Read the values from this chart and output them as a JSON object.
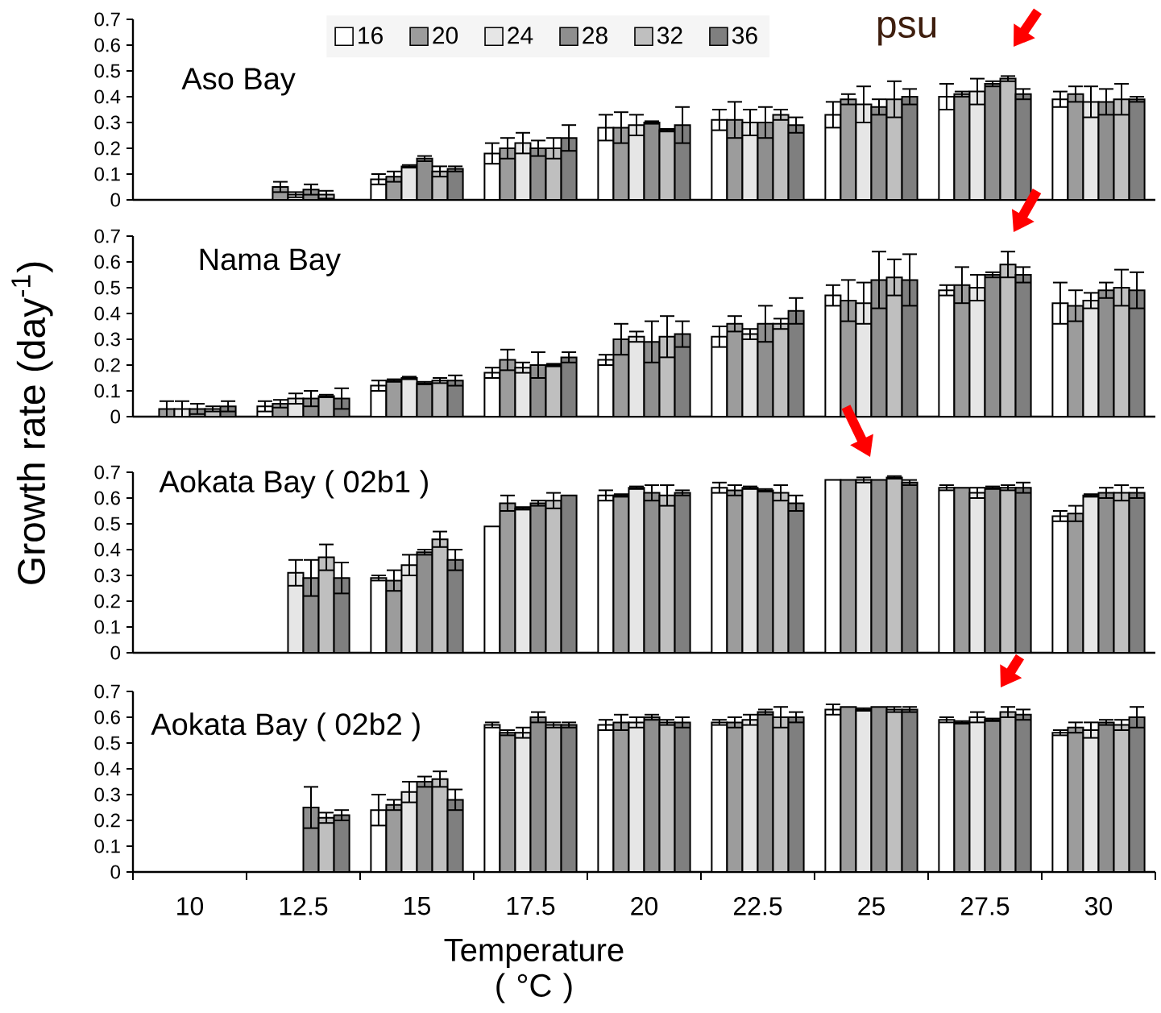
{
  "chart_data": [
    {
      "type": "bar",
      "title": "Aso Bay",
      "legend": "top",
      "legend_title": "psu",
      "tick_labels": "y",
      "categories": [
        "10",
        "12.5",
        "15",
        "17.5",
        "20",
        "22.5",
        "25",
        "27.5",
        "30"
      ],
      "ylim": [
        0,
        0.7
      ],
      "yticks": [
        0,
        0.1,
        0.2,
        0.3,
        0.4,
        0.5,
        0.6,
        0.7
      ],
      "series": [
        {
          "name": "16",
          "color": "#ffffff",
          "values": [
            null,
            null,
            0.08,
            0.18,
            0.28,
            0.31,
            0.33,
            0.4,
            0.39
          ],
          "errors": [
            null,
            null,
            0.02,
            0.04,
            0.05,
            0.04,
            0.05,
            0.05,
            0.03
          ]
        },
        {
          "name": "20",
          "color": "#9c9c9c",
          "values": [
            null,
            0.05,
            0.09,
            0.2,
            0.28,
            0.31,
            0.39,
            0.41,
            0.41
          ],
          "errors": [
            null,
            0.02,
            0.02,
            0.04,
            0.06,
            0.07,
            0.02,
            0.01,
            0.03
          ]
        },
        {
          "name": "24",
          "color": "#e6e6e6",
          "values": [
            null,
            0.02,
            0.13,
            0.22,
            0.29,
            0.3,
            0.37,
            0.42,
            0.38
          ],
          "errors": [
            null,
            0.01,
            0.005,
            0.04,
            0.04,
            0.05,
            0.07,
            0.05,
            0.06
          ]
        },
        {
          "name": "28",
          "color": "#8f8f8f",
          "values": [
            null,
            0.04,
            0.16,
            0.2,
            0.3,
            0.3,
            0.36,
            0.45,
            0.38
          ],
          "errors": [
            null,
            0.02,
            0.01,
            0.03,
            0.005,
            0.06,
            0.03,
            0.01,
            0.05
          ]
        },
        {
          "name": "32",
          "color": "#bfbfbf",
          "values": [
            null,
            0.02,
            0.11,
            0.2,
            0.27,
            0.33,
            0.39,
            0.47,
            0.39
          ],
          "errors": [
            null,
            0.015,
            0.02,
            0.04,
            0.005,
            0.02,
            0.07,
            0.01,
            0.06
          ]
        },
        {
          "name": "36",
          "color": "#7f7f7f",
          "values": [
            null,
            null,
            0.12,
            0.24,
            0.29,
            0.29,
            0.4,
            0.41,
            0.39
          ],
          "errors": [
            null,
            null,
            0.01,
            0.05,
            0.07,
            0.03,
            0.03,
            0.02,
            0.01
          ]
        }
      ]
    },
    {
      "type": "bar",
      "title": "Nama Bay",
      "ylabel": "Growth rate (day$^{-1}$)",
      "tick_labels": "y",
      "categories": [
        "10",
        "12.5",
        "15",
        "17.5",
        "20",
        "22.5",
        "25",
        "27.5",
        "30"
      ],
      "ylim": [
        0,
        0.7
      ],
      "yticks": [
        0,
        0.1,
        0.2,
        0.3,
        0.4,
        0.5,
        0.6,
        0.7
      ],
      "series": [
        {
          "color": "#ffffff",
          "values": [
            null,
            0.04,
            0.12,
            0.17,
            0.22,
            0.31,
            0.47,
            0.49,
            0.44
          ],
          "errors": [
            null,
            0.02,
            0.02,
            0.02,
            0.02,
            0.04,
            0.04,
            0.02,
            0.08
          ]
        },
        {
          "color": "#9c9c9c",
          "values": [
            0.03,
            0.05,
            0.14,
            0.22,
            0.3,
            0.36,
            0.45,
            0.51,
            0.43
          ],
          "errors": [
            0.03,
            0.015,
            0.005,
            0.04,
            0.06,
            0.03,
            0.08,
            0.07,
            0.06
          ]
        },
        {
          "color": "#e6e6e6",
          "values": [
            0.03,
            0.07,
            0.15,
            0.19,
            0.31,
            0.32,
            0.44,
            0.5,
            0.45
          ],
          "errors": [
            0.03,
            0.02,
            0.005,
            0.02,
            0.02,
            0.02,
            0.08,
            0.05,
            0.03
          ]
        },
        {
          "color": "#8f8f8f",
          "values": [
            0.03,
            0.07,
            0.13,
            0.2,
            0.29,
            0.36,
            0.53,
            0.55,
            0.49
          ],
          "errors": [
            0.02,
            0.03,
            0.005,
            0.05,
            0.08,
            0.07,
            0.11,
            0.01,
            0.03
          ]
        },
        {
          "color": "#bfbfbf",
          "values": [
            0.03,
            0.08,
            0.14,
            0.2,
            0.31,
            0.36,
            0.54,
            0.59,
            0.5
          ],
          "errors": [
            0.01,
            0.005,
            0.01,
            0.005,
            0.08,
            0.02,
            0.07,
            0.05,
            0.07
          ]
        },
        {
          "color": "#7f7f7f",
          "values": [
            0.04,
            0.07,
            0.14,
            0.23,
            0.32,
            0.41,
            0.53,
            0.55,
            0.49
          ],
          "errors": [
            0.02,
            0.04,
            0.02,
            0.02,
            0.05,
            0.05,
            0.1,
            0.03,
            0.07
          ]
        }
      ]
    },
    {
      "type": "bar",
      "title": "Aokata Bay ( 02b1 )",
      "tick_labels": "y",
      "categories": [
        "10",
        "12.5",
        "15",
        "17.5",
        "20",
        "22.5",
        "25",
        "27.5",
        "30"
      ],
      "ylim": [
        0,
        0.7
      ],
      "yticks": [
        0,
        0.1,
        0.2,
        0.3,
        0.4,
        0.5,
        0.6,
        0.7
      ],
      "series": [
        {
          "color": "#ffffff",
          "values": [
            null,
            null,
            0.29,
            0.49,
            0.61,
            0.64,
            0.67,
            0.64,
            0.53
          ],
          "errors": [
            null,
            null,
            0.01,
            null,
            0.02,
            0.02,
            null,
            0.01,
            0.02
          ]
        },
        {
          "color": "#9c9c9c",
          "values": [
            null,
            null,
            0.28,
            0.58,
            0.61,
            0.63,
            0.67,
            0.64,
            0.54
          ],
          "errors": [
            null,
            null,
            0.04,
            0.03,
            0.005,
            0.02,
            null,
            null,
            0.03
          ]
        },
        {
          "color": "#e6e6e6",
          "values": [
            null,
            0.31,
            0.34,
            0.56,
            0.64,
            0.64,
            0.67,
            0.62,
            0.61
          ],
          "errors": [
            null,
            0.05,
            0.04,
            0.005,
            0.005,
            0.005,
            0.01,
            0.02,
            0.005
          ]
        },
        {
          "color": "#8f8f8f",
          "values": [
            null,
            0.29,
            0.39,
            0.58,
            0.62,
            0.63,
            0.67,
            0.64,
            0.62
          ],
          "errors": [
            null,
            0.07,
            0.01,
            0.01,
            0.03,
            0.005,
            null,
            0.005,
            0.02
          ]
        },
        {
          "color": "#bfbfbf",
          "values": [
            null,
            0.37,
            0.44,
            0.59,
            0.61,
            0.62,
            0.68,
            0.64,
            0.62
          ],
          "errors": [
            null,
            0.05,
            0.03,
            0.03,
            0.04,
            0.03,
            0.005,
            0.01,
            0.03
          ]
        },
        {
          "color": "#7f7f7f",
          "values": [
            null,
            0.29,
            0.36,
            0.61,
            0.62,
            0.58,
            0.66,
            0.64,
            0.62
          ],
          "errors": [
            null,
            0.06,
            0.04,
            null,
            0.01,
            0.03,
            0.01,
            0.02,
            0.02
          ]
        }
      ]
    },
    {
      "type": "bar",
      "title": "Aokata Bay ( 02b2 )",
      "xlabel": "Temperature ( °C )",
      "categories": [
        "10",
        "12.5",
        "15",
        "17.5",
        "20",
        "22.5",
        "25",
        "27.5",
        "30"
      ],
      "ylim": [
        0,
        0.7
      ],
      "yticks": [
        0,
        0.1,
        0.2,
        0.3,
        0.4,
        0.5,
        0.6,
        0.7
      ],
      "series": [
        {
          "color": "#ffffff",
          "values": [
            null,
            null,
            0.24,
            0.57,
            0.57,
            0.58,
            0.63,
            0.59,
            0.54
          ],
          "errors": [
            null,
            null,
            0.06,
            0.01,
            0.02,
            0.01,
            0.02,
            0.01,
            0.01
          ]
        },
        {
          "color": "#9c9c9c",
          "values": [
            null,
            null,
            0.26,
            0.54,
            0.58,
            0.58,
            0.64,
            0.58,
            0.56
          ],
          "errors": [
            null,
            null,
            0.02,
            0.01,
            0.03,
            0.02,
            null,
            0.005,
            0.02
          ]
        },
        {
          "color": "#e6e6e6",
          "values": [
            null,
            null,
            0.31,
            0.54,
            0.58,
            0.59,
            0.63,
            0.6,
            0.55
          ],
          "errors": [
            null,
            null,
            0.04,
            0.02,
            0.02,
            0.02,
            0.005,
            0.02,
            0.03
          ]
        },
        {
          "color": "#8f8f8f",
          "values": [
            null,
            0.25,
            0.35,
            0.6,
            0.6,
            0.62,
            0.64,
            0.59,
            0.58
          ],
          "errors": [
            null,
            0.08,
            0.02,
            0.02,
            0.01,
            0.01,
            null,
            0.005,
            0.01
          ]
        },
        {
          "color": "#bfbfbf",
          "values": [
            null,
            0.21,
            0.36,
            0.57,
            0.58,
            0.6,
            0.63,
            0.62,
            0.57
          ],
          "errors": [
            null,
            0.02,
            0.03,
            0.01,
            0.01,
            0.04,
            0.01,
            0.02,
            0.02
          ]
        },
        {
          "color": "#7f7f7f",
          "values": [
            null,
            0.22,
            0.28,
            0.57,
            0.58,
            0.6,
            0.63,
            0.61,
            0.6
          ],
          "errors": [
            null,
            0.02,
            0.04,
            0.01,
            0.02,
            0.02,
            0.01,
            0.02,
            0.04
          ]
        }
      ]
    }
  ]
}
